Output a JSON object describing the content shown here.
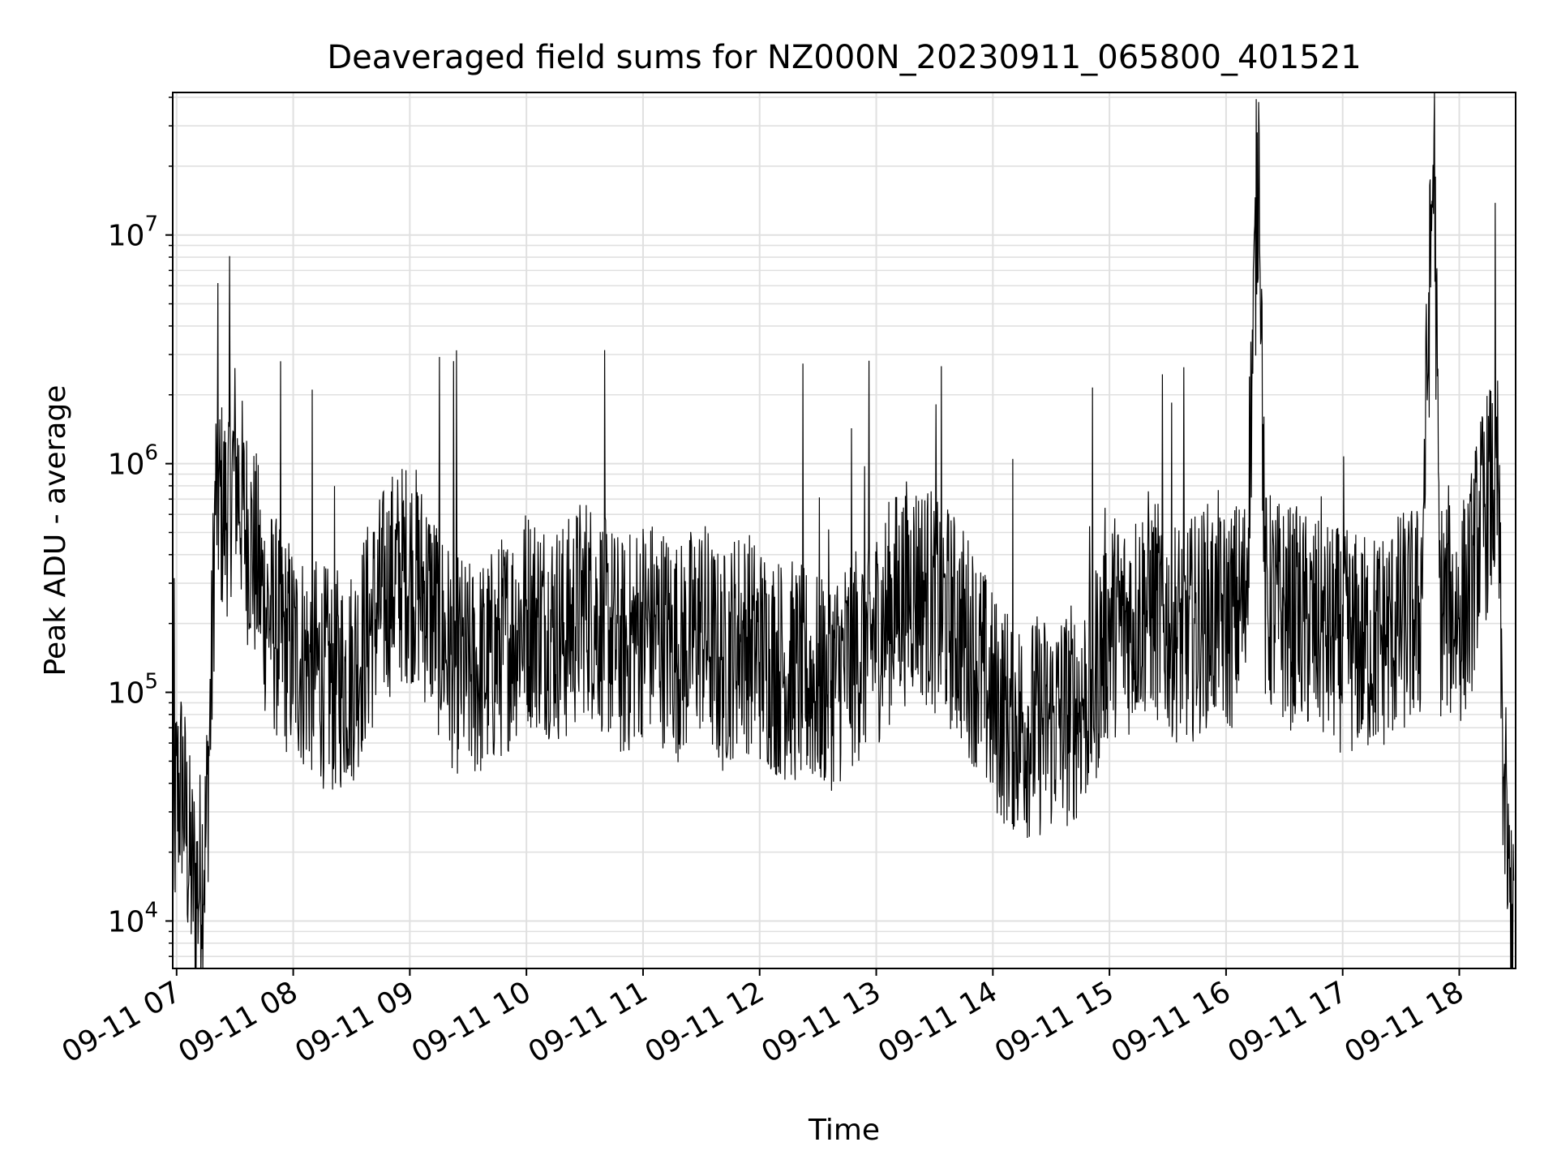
{
  "chart_data": {
    "type": "line",
    "title": "Deaveraged field sums for NZ000N_20230911_065800_401521",
    "xlabel": "Time",
    "ylabel": "Peak ADU - average",
    "yscale": "log",
    "ylim": [
      6200,
      42000000
    ],
    "xlim": [
      "2023-09-11 06:58",
      "2023-09-11 18:29"
    ],
    "grid": true,
    "x_ticks": [
      "09-11 07",
      "09-11 08",
      "09-11 09",
      "09-11 10",
      "09-11 11",
      "09-11 12",
      "09-11 13",
      "09-11 14",
      "09-11 15",
      "09-11 16",
      "09-11 17",
      "09-11 18"
    ],
    "y_ticks": [
      {
        "value": 10000,
        "base": "10",
        "exp": "4"
      },
      {
        "value": 100000,
        "base": "10",
        "exp": "5"
      },
      {
        "value": 1000000,
        "base": "10",
        "exp": "6"
      },
      {
        "value": 10000000,
        "base": "10",
        "exp": "7"
      }
    ],
    "series": [
      {
        "color": "#000000",
        "x": [
          "2023-09-11 06:58",
          "2023-09-11 07:00",
          "2023-09-11 07:03",
          "2023-09-11 07:05",
          "2023-09-11 07:07",
          "2023-09-11 07:09",
          "2023-09-11 07:11",
          "2023-09-11 07:15",
          "2023-09-11 07:18",
          "2023-09-11 07:20",
          "2023-09-11 07:25",
          "2023-09-11 07:30",
          "2023-09-11 07:35",
          "2023-09-11 07:40",
          "2023-09-11 07:45",
          "2023-09-11 07:50",
          "2023-09-11 07:55",
          "2023-09-11 08:00",
          "2023-09-11 08:10",
          "2023-09-11 08:20",
          "2023-09-11 08:30",
          "2023-09-11 08:40",
          "2023-09-11 08:50",
          "2023-09-11 09:00",
          "2023-09-11 09:10",
          "2023-09-11 09:20",
          "2023-09-11 09:30",
          "2023-09-11 09:40",
          "2023-09-11 09:50",
          "2023-09-11 10:00",
          "2023-09-11 10:10",
          "2023-09-11 10:20",
          "2023-09-11 10:30",
          "2023-09-11 10:40",
          "2023-09-11 10:50",
          "2023-09-11 11:00",
          "2023-09-11 11:10",
          "2023-09-11 11:20",
          "2023-09-11 11:30",
          "2023-09-11 11:40",
          "2023-09-11 11:50",
          "2023-09-11 12:00",
          "2023-09-11 12:10",
          "2023-09-11 12:20",
          "2023-09-11 12:30",
          "2023-09-11 12:40",
          "2023-09-11 12:50",
          "2023-09-11 13:00",
          "2023-09-11 13:10",
          "2023-09-11 13:20",
          "2023-09-11 13:30",
          "2023-09-11 13:40",
          "2023-09-11 13:50",
          "2023-09-11 14:00",
          "2023-09-11 14:10",
          "2023-09-11 14:20",
          "2023-09-11 14:30",
          "2023-09-11 14:40",
          "2023-09-11 14:50",
          "2023-09-11 15:00",
          "2023-09-11 15:10",
          "2023-09-11 15:20",
          "2023-09-11 15:30",
          "2023-09-11 15:40",
          "2023-09-11 15:50",
          "2023-09-11 16:00",
          "2023-09-11 16:10",
          "2023-09-11 16:17",
          "2023-09-11 16:20",
          "2023-09-11 16:30",
          "2023-09-11 16:40",
          "2023-09-11 16:50",
          "2023-09-11 17:00",
          "2023-09-11 17:10",
          "2023-09-11 17:20",
          "2023-09-11 17:30",
          "2023-09-11 17:40",
          "2023-09-11 17:47",
          "2023-09-11 17:50",
          "2023-09-11 18:00",
          "2023-09-11 18:05",
          "2023-09-11 18:10",
          "2023-09-11 18:15",
          "2023-09-11 18:20",
          "2023-09-11 18:22",
          "2023-09-11 18:24",
          "2023-09-11 18:26",
          "2023-09-11 18:28"
        ],
        "y": [
          20000,
          35000,
          40000,
          25000,
          17000,
          15000,
          14000,
          22000,
          120000,
          750000,
          600000,
          1000000,
          550000,
          400000,
          250000,
          200000,
          170000,
          150000,
          130000,
          110000,
          120000,
          200000,
          300000,
          350000,
          250000,
          150000,
          120000,
          130000,
          170000,
          220000,
          200000,
          180000,
          250000,
          200000,
          150000,
          200000,
          180000,
          150000,
          200000,
          130000,
          180000,
          150000,
          130000,
          120000,
          110000,
          120000,
          150000,
          180000,
          250000,
          300000,
          250000,
          200000,
          150000,
          90000,
          75000,
          70000,
          75000,
          80000,
          100000,
          200000,
          200000,
          250000,
          200000,
          180000,
          220000,
          200000,
          250000,
          28000000,
          250000,
          220000,
          200000,
          180000,
          170000,
          160000,
          170000,
          200000,
          220000,
          27000000,
          240000,
          220000,
          260000,
          500000,
          700000,
          800000,
          80000,
          20000,
          12000,
          15000
        ]
      }
    ]
  }
}
